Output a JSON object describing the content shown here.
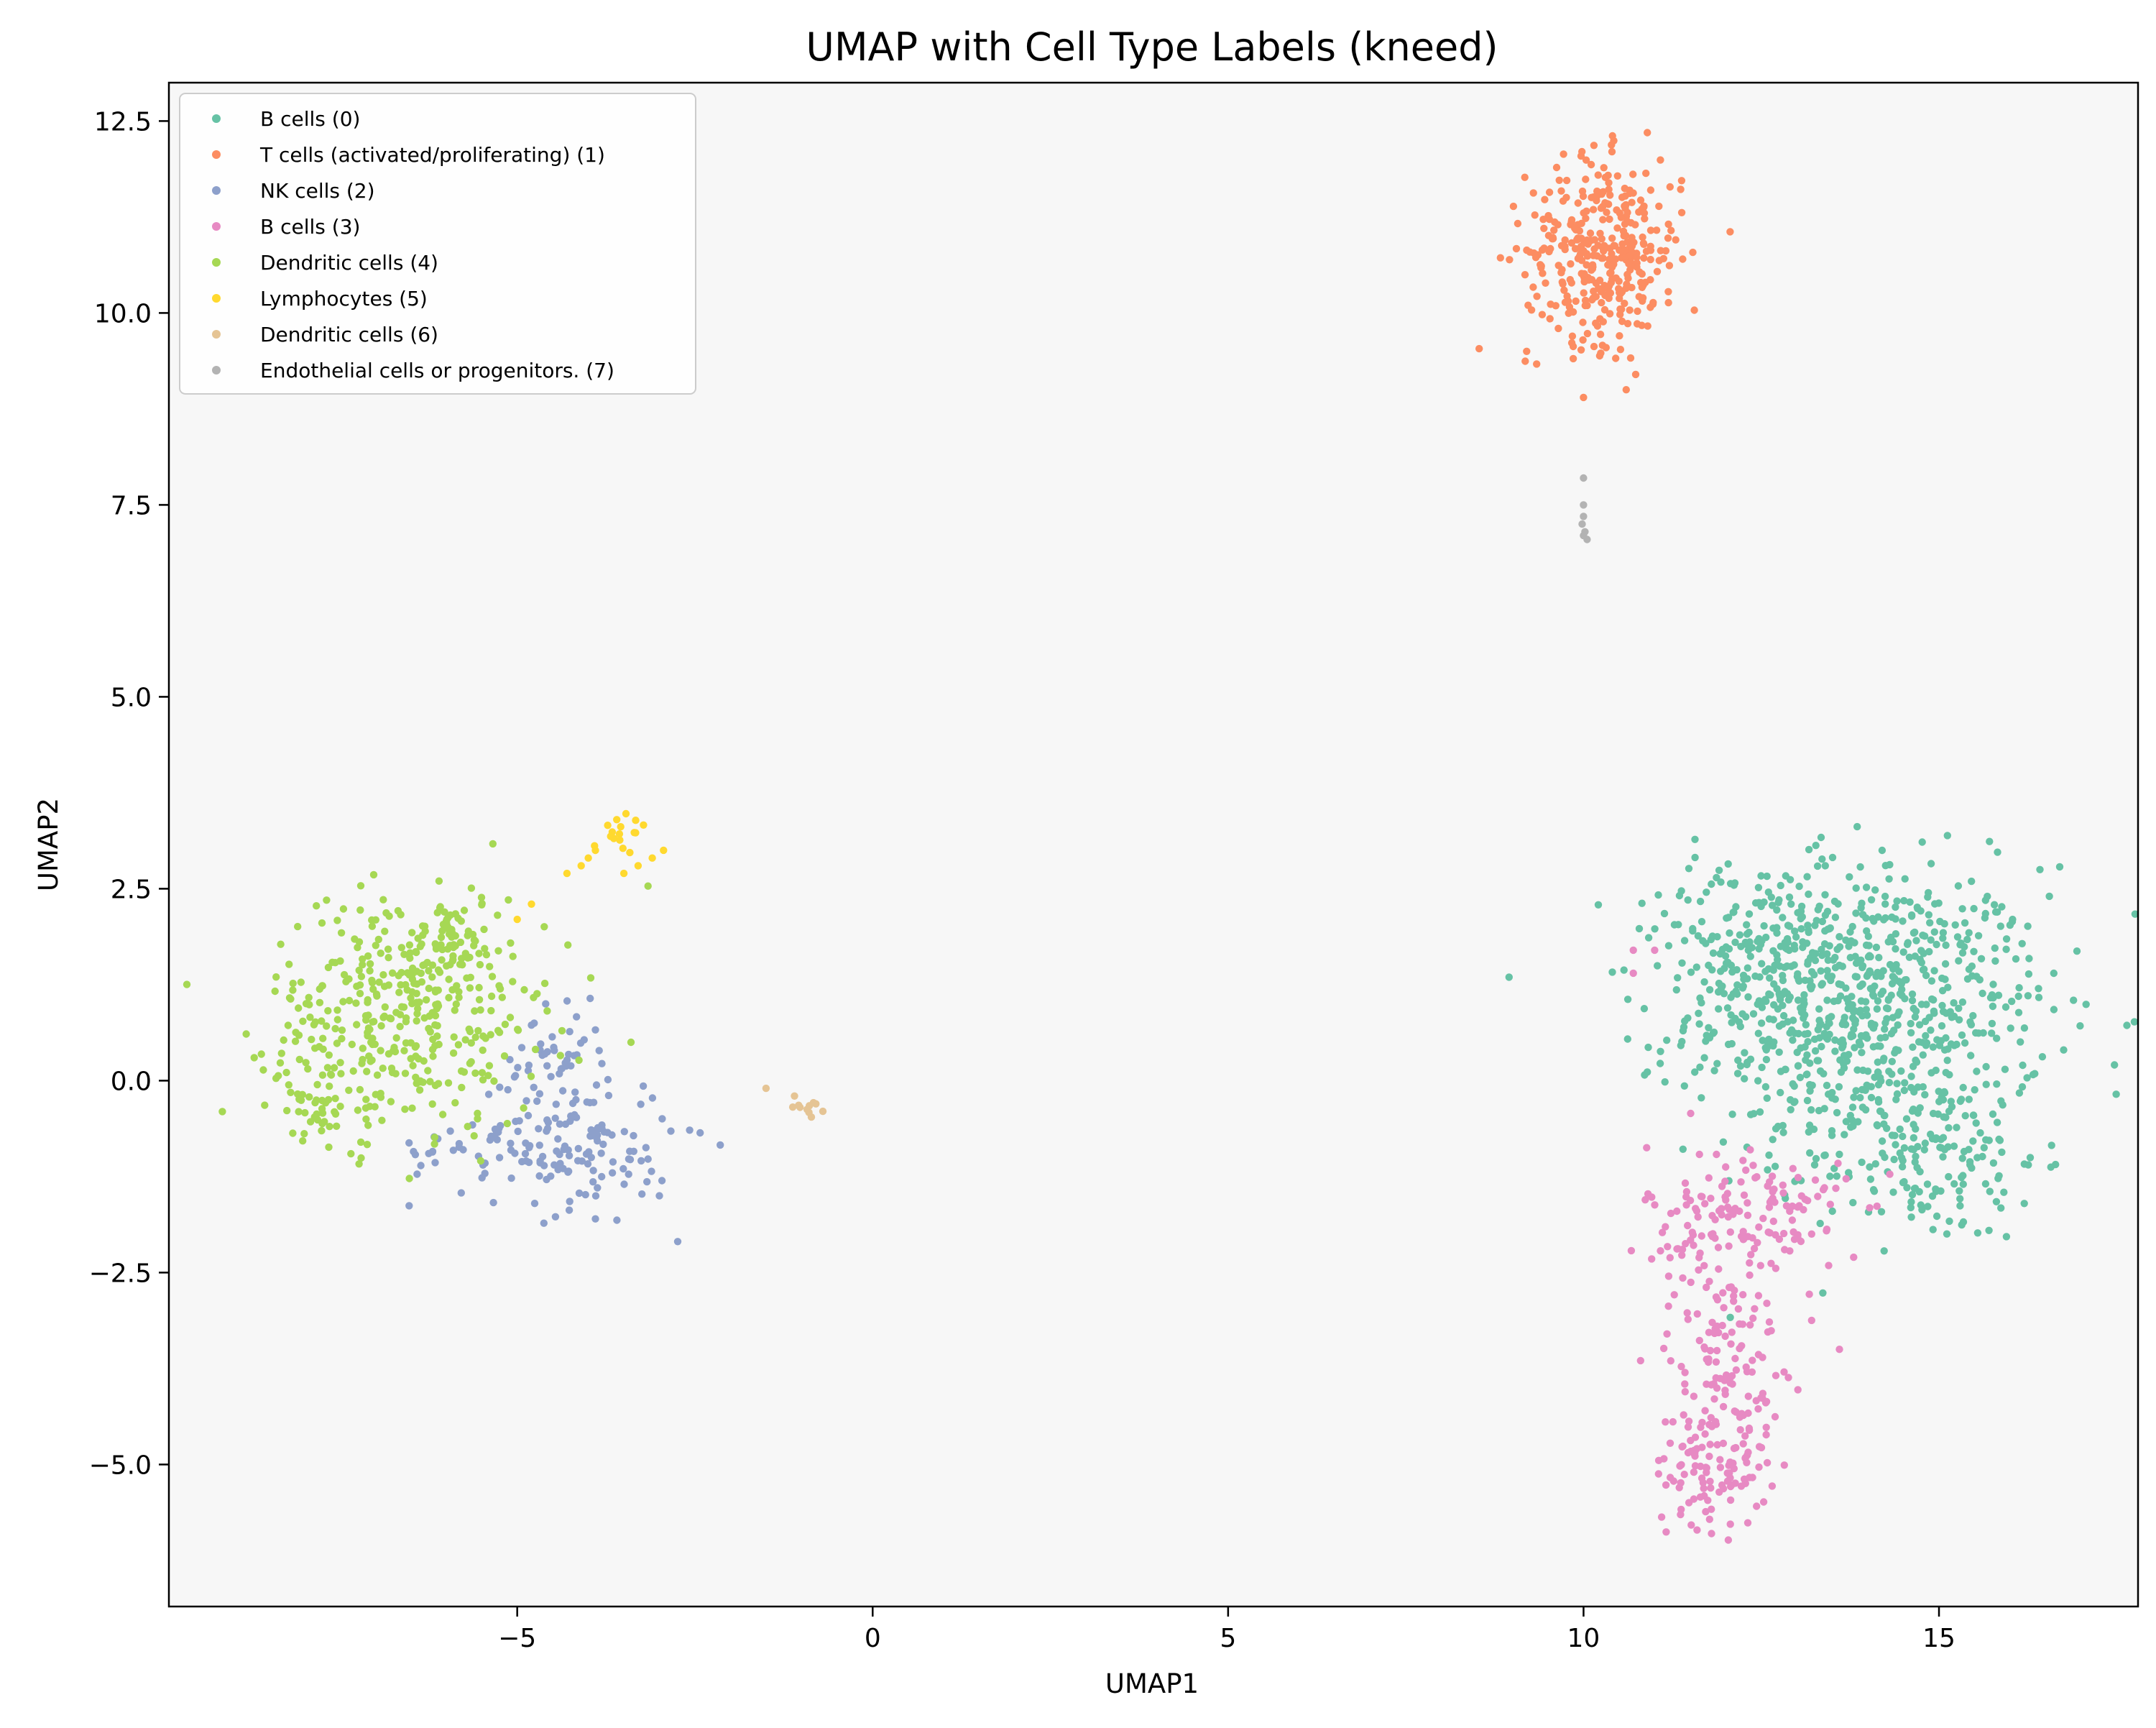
{
  "chart_data": {
    "type": "scatter",
    "title": "UMAP with Cell Type Labels (kneed)",
    "xlabel": "UMAP1",
    "ylabel": "UMAP2",
    "xlim": [
      -9.9,
      17.8
    ],
    "ylim": [
      -6.85,
      13.0
    ],
    "xticks": [
      -5,
      0,
      5,
      10,
      15
    ],
    "xtick_labels": [
      "−5",
      "0",
      "5",
      "10",
      "15"
    ],
    "yticks": [
      -5.0,
      -2.5,
      0.0,
      2.5,
      5.0,
      7.5,
      10.0,
      12.5
    ],
    "ytick_labels": [
      "−5.0",
      "−2.5",
      "0.0",
      "2.5",
      "5.0",
      "7.5",
      "10.0",
      "12.5"
    ],
    "grid": false,
    "legend_position": "top-left",
    "plot_background": "#f7f7f7",
    "series": [
      {
        "name": "B cells (0)",
        "color": "#66c2a5",
        "clusters": [
          {
            "center": [
              14.0,
              0.9
            ],
            "spread": [
              1.25,
              0.95
            ],
            "count": 700
          },
          {
            "center": [
              12.5,
              1.7
            ],
            "spread": [
              0.9,
              0.6
            ],
            "count": 180
          },
          {
            "center": [
              14.8,
              -1.0
            ],
            "spread": [
              0.8,
              0.55
            ],
            "count": 150
          }
        ],
        "points": [
          [
            13.4,
            2.8
          ],
          [
            14.2,
            3.0
          ],
          [
            16.4,
            1.2
          ],
          [
            16.2,
            -1.6
          ],
          [
            13.5,
            -1.7
          ]
        ]
      },
      {
        "name": "T cells (activated/proliferating) (1)",
        "color": "#fc8d62",
        "clusters": [
          {
            "center": [
              10.3,
              10.8
            ],
            "spread": [
              0.55,
              0.6
            ],
            "count": 360
          }
        ],
        "points": [
          [
            10.0,
            8.9
          ],
          [
            10.6,
            9.0
          ],
          [
            10.4,
            12.1
          ],
          [
            9.2,
            9.5
          ]
        ]
      },
      {
        "name": "NK cells (2)",
        "color": "#8da0cb",
        "clusters": [
          {
            "center": [
              -4.3,
              -0.8
            ],
            "spread": [
              0.75,
              0.45
            ],
            "count": 150
          },
          {
            "center": [
              -4.5,
              0.2
            ],
            "spread": [
              0.35,
              0.35
            ],
            "count": 40
          },
          {
            "center": [
              -6.0,
              -0.9
            ],
            "spread": [
              0.35,
              0.12
            ],
            "count": 14
          }
        ],
        "points": [
          [
            -3.9,
            -1.8
          ],
          [
            -4.6,
            1.0
          ],
          [
            -3.0,
            -1.5
          ]
        ]
      },
      {
        "name": "B cells (3)",
        "color": "#e78ac3",
        "clusters": [
          {
            "center": [
              11.8,
              -5.0
            ],
            "spread": [
              0.4,
              0.4
            ],
            "count": 110
          },
          {
            "center": [
              12.0,
              -3.5
            ],
            "spread": [
              0.4,
              0.6
            ],
            "count": 110
          },
          {
            "center": [
              12.3,
              -1.8
            ],
            "spread": [
              0.7,
              0.5
            ],
            "count": 150
          }
        ],
        "points": [
          [
            10.7,
            1.7
          ],
          [
            10.7,
            1.4
          ],
          [
            11.0,
            1.7
          ],
          [
            13.6,
            -3.5
          ],
          [
            11.8,
            -5.9
          ],
          [
            13.8,
            -2.3
          ]
        ]
      },
      {
        "name": "Dendritic cells (4)",
        "color": "#a6d854",
        "clusters": [
          {
            "center": [
              -6.6,
              0.9
            ],
            "spread": [
              0.95,
              0.75
            ],
            "count": 360
          },
          {
            "center": [
              -7.8,
              -0.3
            ],
            "spread": [
              0.35,
              0.35
            ],
            "count": 45
          },
          {
            "center": [
              -5.8,
              1.8
            ],
            "spread": [
              0.5,
              0.35
            ],
            "count": 60
          }
        ],
        "points": [
          [
            -8.7,
            0.3
          ],
          [
            -6.1,
            2.6
          ],
          [
            -3.4,
            0.5
          ],
          [
            -7.2,
            -0.8
          ]
        ]
      },
      {
        "name": "Lymphocytes (5)",
        "color": "#ffd92f",
        "clusters": [
          {
            "center": [
              -3.5,
              3.2
            ],
            "spread": [
              0.22,
              0.15
            ],
            "count": 16
          }
        ],
        "points": [
          [
            -4.3,
            2.7
          ],
          [
            -4.1,
            2.8
          ],
          [
            -3.9,
            3.0
          ],
          [
            -4.8,
            2.3
          ],
          [
            -5.0,
            2.1
          ],
          [
            -3.1,
            2.9
          ],
          [
            -3.3,
            2.8
          ],
          [
            -3.6,
            3.4
          ],
          [
            -3.5,
            2.7
          ],
          [
            -4.0,
            2.9
          ]
        ]
      },
      {
        "name": "Dendritic cells (6)",
        "color": "#e5c494",
        "clusters": [
          {
            "center": [
              -0.9,
              -0.3
            ],
            "spread": [
              0.1,
              0.07
            ],
            "count": 9
          }
        ],
        "points": [
          [
            -1.5,
            -0.1
          ],
          [
            -1.1,
            -0.2
          ],
          [
            -0.7,
            -0.4
          ]
        ]
      },
      {
        "name": "Endothelial cells or progenitors. (7)",
        "color": "#b3b3b3",
        "clusters": [],
        "points": [
          [
            10.0,
            7.85
          ],
          [
            10.0,
            7.5
          ],
          [
            10.0,
            7.35
          ],
          [
            9.98,
            7.25
          ],
          [
            10.02,
            7.15
          ],
          [
            10.05,
            7.05
          ],
          [
            10.0,
            7.1
          ]
        ]
      }
    ]
  }
}
